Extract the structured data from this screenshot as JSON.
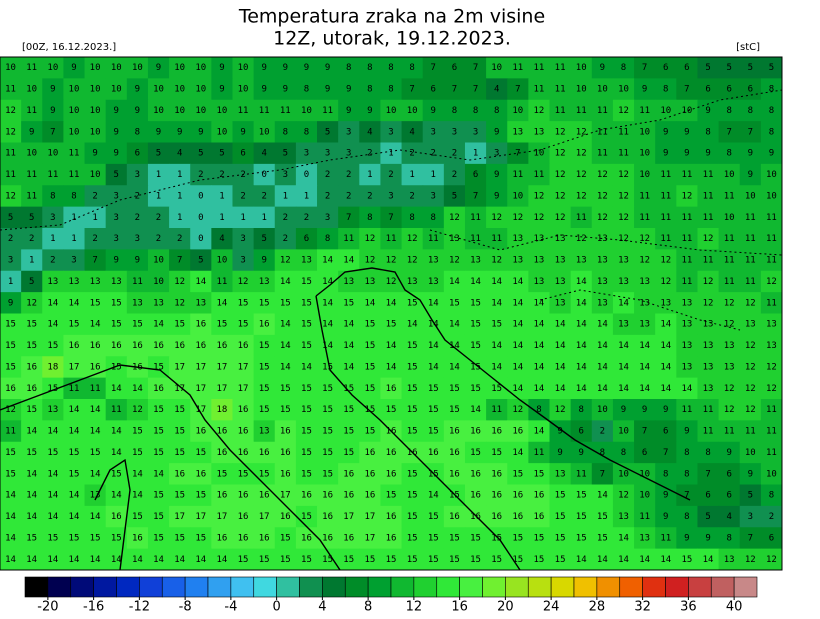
{
  "header": {
    "title": "Temperatura zraka na 2m visine",
    "subtitle": "12Z, utorak, 19.12.2023.",
    "run": "[00Z, 16.12.2023.]",
    "unit": "[stC]"
  },
  "map": {
    "grid": [
      [
        10,
        11,
        10,
        9,
        10,
        10,
        10,
        9,
        10,
        10,
        9,
        10,
        9,
        9,
        9,
        9,
        8,
        8,
        8,
        8,
        7,
        6,
        7,
        10,
        11,
        11,
        11,
        10,
        9,
        8,
        7,
        6,
        6,
        5,
        5,
        5,
        5
      ],
      [
        11,
        10,
        9,
        10,
        10,
        10,
        9,
        10,
        10,
        10,
        9,
        10,
        9,
        9,
        8,
        9,
        9,
        8,
        8,
        7,
        6,
        7,
        7,
        4,
        7,
        11,
        11,
        10,
        10,
        10,
        9,
        8,
        7,
        6,
        6,
        6,
        8
      ],
      [
        12,
        11,
        9,
        10,
        10,
        9,
        9,
        10,
        10,
        10,
        10,
        11,
        11,
        11,
        10,
        11,
        9,
        9,
        10,
        10,
        9,
        8,
        8,
        8,
        10,
        12,
        11,
        11,
        11,
        12,
        11,
        10,
        10,
        9,
        8,
        8,
        8
      ],
      [
        12,
        9,
        7,
        10,
        10,
        9,
        8,
        9,
        9,
        9,
        10,
        9,
        10,
        8,
        8,
        5,
        3,
        4,
        3,
        4,
        3,
        3,
        3,
        9,
        13,
        13,
        12,
        12,
        11,
        11,
        10,
        9,
        9,
        8,
        7,
        7,
        8
      ],
      [
        11,
        10,
        10,
        11,
        9,
        9,
        6,
        5,
        4,
        5,
        5,
        6,
        4,
        5,
        3,
        3,
        3,
        2,
        1,
        2,
        2,
        2,
        1,
        3,
        7,
        10,
        12,
        12,
        11,
        11,
        10,
        9,
        9,
        9,
        8,
        9,
        9
      ],
      [
        11,
        11,
        11,
        11,
        10,
        5,
        3,
        1,
        1,
        2,
        2,
        2,
        0,
        3,
        0,
        2,
        2,
        1,
        2,
        1,
        1,
        2,
        6,
        9,
        11,
        11,
        12,
        12,
        12,
        12,
        10,
        11,
        11,
        11,
        10,
        9,
        10
      ],
      [
        12,
        11,
        8,
        8,
        2,
        3,
        2,
        1,
        1,
        0,
        1,
        2,
        2,
        1,
        1,
        2,
        2,
        2,
        3,
        2,
        3,
        5,
        7,
        9,
        10,
        12,
        12,
        12,
        12,
        12,
        11,
        11,
        12,
        11,
        11,
        10,
        10
      ],
      [
        5,
        5,
        3,
        1,
        1,
        3,
        2,
        2,
        1,
        0,
        1,
        1,
        1,
        2,
        2,
        3,
        7,
        8,
        7,
        8,
        8,
        12,
        11,
        12,
        12,
        12,
        12,
        11,
        12,
        12,
        11,
        11,
        11,
        11,
        10,
        11,
        11
      ],
      [
        2,
        2,
        1,
        1,
        2,
        3,
        3,
        2,
        2,
        0,
        4,
        3,
        5,
        2,
        6,
        8,
        11,
        12,
        11,
        12,
        11,
        13,
        11,
        11,
        13,
        13,
        13,
        12,
        13,
        12,
        12,
        11,
        11,
        12,
        11,
        11,
        11
      ],
      [
        3,
        1,
        2,
        3,
        7,
        9,
        9,
        10,
        7,
        5,
        10,
        3,
        9,
        12,
        13,
        14,
        14,
        12,
        12,
        12,
        13,
        12,
        13,
        12,
        13,
        13,
        13,
        13,
        13,
        13,
        12,
        12,
        11,
        11,
        11,
        11,
        11
      ],
      [
        1,
        5,
        13,
        13,
        13,
        13,
        11,
        10,
        12,
        14,
        11,
        12,
        13,
        14,
        15,
        14,
        13,
        13,
        12,
        13,
        13,
        14,
        14,
        14,
        14,
        13,
        13,
        14,
        13,
        13,
        13,
        12,
        11,
        12,
        11,
        11,
        12
      ],
      [
        9,
        12,
        14,
        14,
        15,
        15,
        13,
        13,
        12,
        13,
        14,
        15,
        15,
        15,
        15,
        14,
        15,
        14,
        14,
        15,
        14,
        15,
        15,
        14,
        14,
        14,
        13,
        14,
        13,
        14,
        13,
        13,
        13,
        12,
        12,
        12,
        11
      ],
      [
        15,
        15,
        14,
        15,
        14,
        15,
        15,
        14,
        15,
        16,
        15,
        15,
        16,
        14,
        15,
        14,
        14,
        15,
        15,
        14,
        14,
        14,
        15,
        15,
        14,
        14,
        14,
        14,
        14,
        13,
        13,
        14,
        13,
        13,
        12,
        13,
        13
      ],
      [
        15,
        15,
        15,
        16,
        16,
        16,
        16,
        16,
        16,
        16,
        16,
        16,
        15,
        14,
        15,
        14,
        14,
        15,
        14,
        15,
        14,
        14,
        15,
        14,
        14,
        14,
        14,
        14,
        14,
        14,
        14,
        14,
        13,
        13,
        13,
        12,
        13
      ],
      [
        15,
        16,
        18,
        17,
        16,
        15,
        16,
        15,
        17,
        17,
        17,
        17,
        15,
        14,
        14,
        15,
        14,
        15,
        14,
        15,
        14,
        14,
        15,
        14,
        14,
        14,
        14,
        14,
        14,
        14,
        14,
        14,
        13,
        13,
        13,
        12,
        12
      ],
      [
        16,
        16,
        15,
        11,
        11,
        14,
        14,
        16,
        17,
        17,
        17,
        17,
        15,
        15,
        15,
        15,
        15,
        15,
        16,
        15,
        15,
        15,
        15,
        15,
        14,
        14,
        14,
        14,
        14,
        14,
        14,
        14,
        14,
        13,
        12,
        12,
        12
      ],
      [
        12,
        15,
        13,
        14,
        14,
        11,
        12,
        15,
        15,
        17,
        18,
        16,
        15,
        15,
        15,
        15,
        15,
        15,
        15,
        15,
        15,
        15,
        14,
        11,
        12,
        8,
        12,
        8,
        10,
        9,
        9,
        9,
        11,
        11,
        12,
        12,
        11
      ],
      [
        11,
        14,
        14,
        14,
        14,
        14,
        15,
        15,
        15,
        16,
        16,
        16,
        13,
        16,
        15,
        15,
        15,
        15,
        16,
        15,
        15,
        16,
        16,
        16,
        16,
        14,
        9,
        6,
        2,
        10,
        7,
        6,
        9,
        11,
        11,
        11,
        11
      ],
      [
        15,
        15,
        15,
        15,
        15,
        14,
        15,
        15,
        15,
        15,
        16,
        16,
        16,
        16,
        15,
        15,
        15,
        16,
        16,
        16,
        16,
        16,
        15,
        15,
        14,
        11,
        9,
        9,
        8,
        8,
        6,
        7,
        8,
        8,
        9,
        10,
        11
      ],
      [
        15,
        14,
        14,
        15,
        14,
        15,
        14,
        14,
        16,
        16,
        15,
        15,
        15,
        16,
        15,
        15,
        16,
        16,
        16,
        15,
        15,
        16,
        16,
        16,
        15,
        15,
        13,
        11,
        7,
        10,
        10,
        8,
        8,
        7,
        6,
        9,
        10
      ],
      [
        14,
        14,
        14,
        14,
        13,
        14,
        14,
        15,
        15,
        15,
        16,
        16,
        16,
        17,
        16,
        16,
        16,
        16,
        15,
        15,
        14,
        15,
        16,
        16,
        16,
        16,
        15,
        15,
        14,
        12,
        10,
        9,
        7,
        6,
        6,
        5,
        8
      ],
      [
        14,
        14,
        14,
        14,
        14,
        16,
        15,
        15,
        17,
        17,
        17,
        16,
        17,
        16,
        15,
        16,
        17,
        17,
        16,
        15,
        15,
        16,
        16,
        16,
        16,
        16,
        15,
        15,
        15,
        13,
        11,
        9,
        8,
        5,
        4,
        3,
        2
      ],
      [
        14,
        15,
        15,
        15,
        15,
        15,
        16,
        15,
        15,
        15,
        16,
        16,
        16,
        15,
        16,
        16,
        16,
        17,
        16,
        15,
        15,
        15,
        15,
        15,
        15,
        15,
        15,
        15,
        15,
        14,
        13,
        11,
        9,
        9,
        8,
        7,
        6
      ],
      [
        14,
        14,
        14,
        14,
        14,
        14,
        14,
        14,
        14,
        14,
        14,
        15,
        15,
        15,
        15,
        15,
        15,
        15,
        15,
        15,
        15,
        15,
        15,
        15,
        15,
        15,
        15,
        14,
        14,
        14,
        14,
        14,
        15,
        14,
        13,
        12,
        12
      ]
    ]
  },
  "colorbar": {
    "lim": [
      -22,
      42
    ],
    "colors": [
      "#000000",
      "#000050",
      "#000a78",
      "#0018a0",
      "#0028c0",
      "#1040d8",
      "#1860e8",
      "#2080f0",
      "#30a0f0",
      "#40c0f0",
      "#40d8e0",
      "#30c0a0",
      "#109050",
      "#007830",
      "#008c28",
      "#00a030",
      "#10b830",
      "#20d030",
      "#30e838",
      "#48f040",
      "#70f030",
      "#98e420",
      "#b8e010",
      "#d8d800",
      "#f0c000",
      "#f09000",
      "#f06000",
      "#e03010",
      "#d02020",
      "#c84040",
      "#c06060",
      "#c88888"
    ],
    "ticks": [
      -20,
      -16,
      -12,
      -8,
      -4,
      0,
      4,
      8,
      12,
      16,
      20,
      24,
      28,
      32,
      36,
      40
    ]
  }
}
